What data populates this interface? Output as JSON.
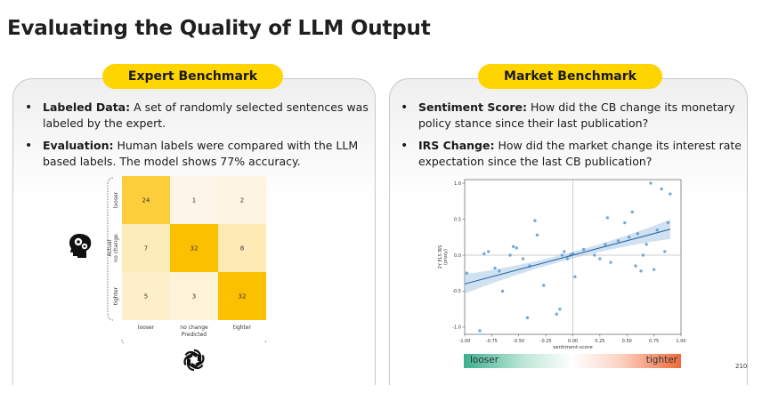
{
  "slide": {
    "title": "Evaluating the Quality of LLM Output",
    "page_number": "210"
  },
  "expert": {
    "heading": "Expert Benchmark",
    "bullets": [
      {
        "label": "Labeled Data:",
        "text": " A set of randomly selected sentences was labeled by the expert."
      },
      {
        "label": "Evaluation:",
        "text": " Human labels were compared with the LLM based labels. The model shows 77% accuracy."
      }
    ]
  },
  "market": {
    "heading": "Market Benchmark",
    "bullets": [
      {
        "label": "Sentiment Score:",
        "text": " How did the CB change its monetary policy stance since their last publication?"
      },
      {
        "label": "IRS Change:",
        "text": " How did the market change its interest rate expectation since the last CB publication?"
      }
    ],
    "scale_left": "looser",
    "scale_right": "tighter",
    "scale_colors": {
      "left": "#3bb08f",
      "right": "#ef6a3b"
    }
  },
  "icons": {
    "human": "human-head-gears-icon",
    "model": "openai-logo-icon"
  },
  "chart_data": [
    {
      "type": "heatmap",
      "rows": [
        "looser",
        "no change",
        "tighter"
      ],
      "columns": [
        "looser",
        "no change",
        "tighter"
      ],
      "values": [
        [
          24,
          1,
          2
        ],
        [
          7,
          32,
          8
        ],
        [
          5,
          3,
          32
        ]
      ],
      "xlabel": "Predicted",
      "ylabel": "Actual",
      "color_low": "#fdf6e8",
      "color_high": "#fbc000"
    },
    {
      "type": "scatter",
      "xlabel": "sentiment-score",
      "ylabel": "2Y ELS IRS\n(proxy)",
      "xlim": [
        -1.0,
        1.0
      ],
      "ylim": [
        -1.1,
        1.05
      ],
      "xticks": [
        "-1.00",
        "-0.75",
        "-0.50",
        "-0.25",
        "0.00",
        "0.25",
        "0.50",
        "0.75",
        "1.00"
      ],
      "yticks": [
        "-1.0",
        "-0.5",
        "0.0",
        "0.5",
        "1.0"
      ],
      "grid": false,
      "regression": {
        "x": [
          -1.0,
          0.9
        ],
        "y": [
          -0.4,
          0.36
        ]
      },
      "points": {
        "x": [
          -0.98,
          -0.86,
          -0.82,
          -0.78,
          -0.72,
          -0.68,
          -0.65,
          -0.58,
          -0.55,
          -0.52,
          -0.46,
          -0.42,
          -0.4,
          -0.35,
          -0.33,
          -0.27,
          -0.15,
          -0.12,
          -0.1,
          -0.08,
          -0.05,
          -0.02,
          0.0,
          0.02,
          0.1,
          0.2,
          0.25,
          0.3,
          0.32,
          0.35,
          0.42,
          0.48,
          0.52,
          0.55,
          0.58,
          0.6,
          0.63,
          0.65,
          0.68,
          0.72,
          0.75,
          0.78,
          0.82,
          0.85,
          0.88,
          0.9
        ],
        "y": [
          -0.25,
          -1.05,
          0.02,
          0.05,
          -0.18,
          -0.22,
          -0.5,
          0.0,
          0.12,
          0.1,
          -0.05,
          -0.87,
          -0.15,
          0.48,
          0.28,
          -0.42,
          -0.82,
          -0.75,
          0.0,
          0.05,
          -0.05,
          0.0,
          0.02,
          -0.3,
          0.08,
          0.0,
          -0.05,
          0.15,
          0.52,
          -0.1,
          0.2,
          0.45,
          0.25,
          0.6,
          -0.15,
          0.3,
          -0.22,
          0.0,
          0.15,
          1.0,
          -0.2,
          0.35,
          0.92,
          0.05,
          0.45,
          0.85
        ]
      }
    }
  ]
}
